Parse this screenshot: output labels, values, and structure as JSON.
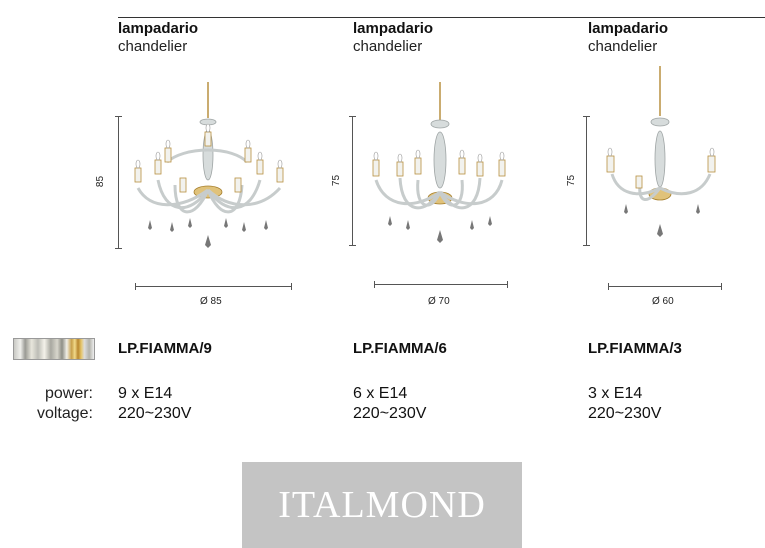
{
  "products": [
    {
      "type_it": "lampadario",
      "type_en": "chandelier",
      "height": "85",
      "diameter": "Ø 85",
      "model": "LP.FIAMMA/9",
      "power": "9 x E14",
      "voltage": "220~230V"
    },
    {
      "type_it": "lampadario",
      "type_en": "chandelier",
      "height": "75",
      "diameter": "Ø 70",
      "model": "LP.FIAMMA/6",
      "power": "6 x E14",
      "voltage": "220~230V"
    },
    {
      "type_it": "lampadario",
      "type_en": "chandelier",
      "height": "75",
      "diameter": "Ø 60",
      "model": "LP.FIAMMA/3",
      "power": "3 x E14",
      "voltage": "220~230V"
    }
  ],
  "labels": {
    "power": "power:",
    "voltage": "voltage:"
  },
  "brand": "ITALMOND",
  "finish_swatch": "gold-crystal-finish",
  "colors": {
    "gold": "#c9a14a",
    "crystal": "#cfd3d3",
    "logo_bg": "#c4c4c4"
  }
}
